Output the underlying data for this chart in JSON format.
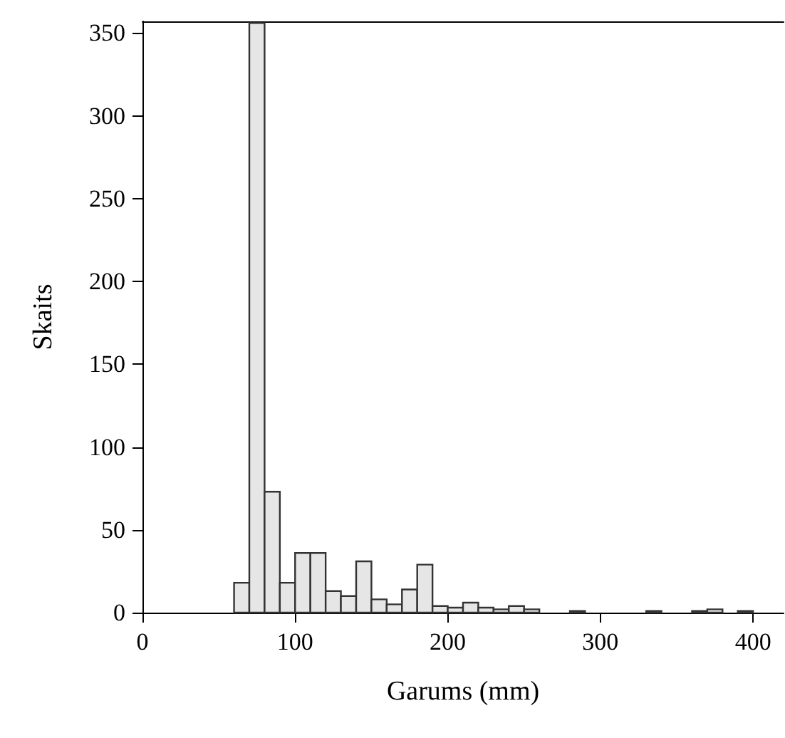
{
  "chart_data": {
    "type": "histogram",
    "xlabel": "Garums (mm)",
    "ylabel": "Skaits",
    "bins": [
      60,
      70,
      80,
      90,
      100,
      110,
      120,
      130,
      140,
      150,
      160,
      170,
      180,
      190,
      200,
      210,
      220,
      230,
      240,
      250,
      260,
      270,
      280,
      290,
      300,
      310,
      320,
      330,
      340,
      350,
      360,
      370,
      380,
      390,
      400
    ],
    "values": [
      18,
      356,
      73,
      18,
      36,
      36,
      13,
      10,
      31,
      8,
      5,
      14,
      29,
      4,
      3,
      6,
      3,
      2,
      4,
      2,
      0,
      0,
      1,
      0,
      0,
      0,
      0,
      1,
      0,
      0,
      1,
      2,
      0,
      1
    ],
    "color": "#e6e6e6",
    "xlim": [
      0,
      420
    ],
    "xticks": [
      0,
      100,
      200,
      300,
      400
    ],
    "ylim": [
      0,
      357
    ],
    "yticks": [
      0,
      50,
      100,
      150,
      200,
      250,
      300,
      350
    ],
    "grid": false
  }
}
